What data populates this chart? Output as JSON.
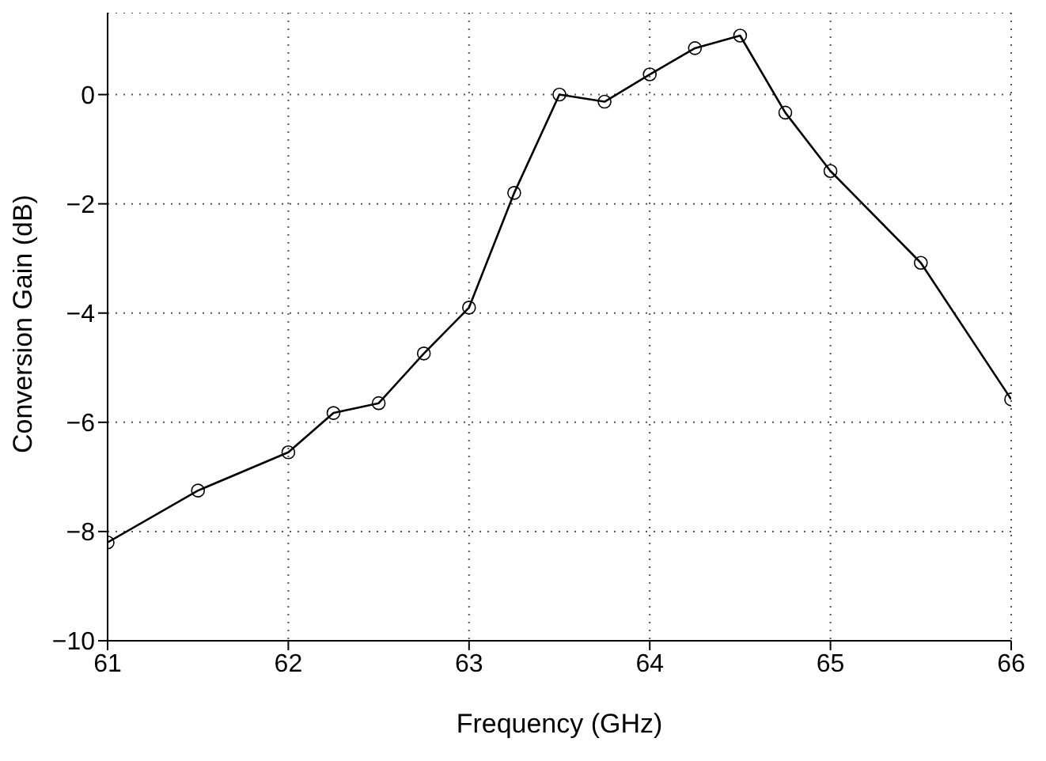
{
  "chart_data": {
    "type": "line",
    "xlabel": "Frequency (GHz)",
    "ylabel": "Conversion Gain (dB)",
    "x": [
      61,
      61.5,
      62,
      62.25,
      62.5,
      62.75,
      63,
      63.25,
      63.5,
      63.75,
      64,
      64.25,
      64.5,
      64.75,
      65,
      65.5,
      66
    ],
    "series": [
      {
        "color": "#000000",
        "values": [
          -8.2,
          -7.25,
          -6.55,
          -5.83,
          -5.65,
          -4.74,
          -3.9,
          -1.8,
          0,
          -0.13,
          0.37,
          0.85,
          1.08,
          -0.33,
          -1.4,
          -3.08,
          -5.58
        ]
      }
    ],
    "xlim": [
      61,
      66
    ],
    "xticks": [
      61,
      62,
      63,
      64,
      65,
      66
    ],
    "ylim": [
      -10,
      1.5
    ],
    "yticks": [
      -10,
      -8,
      -6,
      -4,
      -2,
      0
    ],
    "grid": true,
    "marker": "circle",
    "line_style": "solid",
    "legend": false
  }
}
